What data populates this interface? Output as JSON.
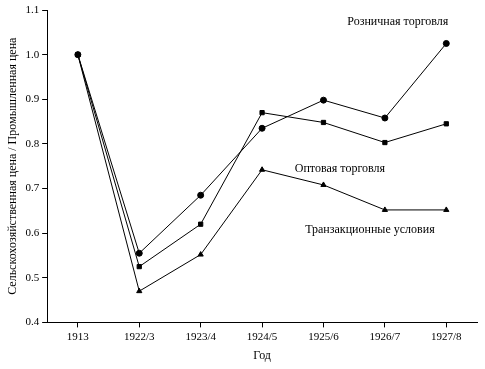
{
  "chart_data": {
    "type": "line",
    "xlabel": "Год",
    "ylabel": "Сельскохозяйственная цена / Промышленная цена",
    "categories": [
      "1913",
      "1922/3",
      "1923/4",
      "1924/5",
      "1925/6",
      "1926/7",
      "1927/8"
    ],
    "series": [
      {
        "name": "Розничная торговля",
        "color": "#000000",
        "marker": "circle",
        "values": [
          1.0,
          0.555,
          0.685,
          0.835,
          0.898,
          0.858,
          1.025
        ]
      },
      {
        "name": "Оптовая торговля",
        "color": "#000000",
        "marker": "rect",
        "values": [
          1.0,
          0.525,
          0.62,
          0.87,
          0.848,
          0.803,
          0.845
        ]
      },
      {
        "name": "Транзакционные условия",
        "color": "#000000",
        "marker": "triangle",
        "values": [
          1.0,
          0.47,
          0.552,
          0.742,
          0.708,
          0.652,
          0.652
        ]
      }
    ],
    "ylim": [
      0.4,
      1.1
    ],
    "yticks": [
      0.4,
      0.5,
      0.6,
      0.7,
      0.8,
      0.9,
      {
        "value": 1,
        "label": "1.0"
      },
      1.1
    ],
    "grid": false
  }
}
